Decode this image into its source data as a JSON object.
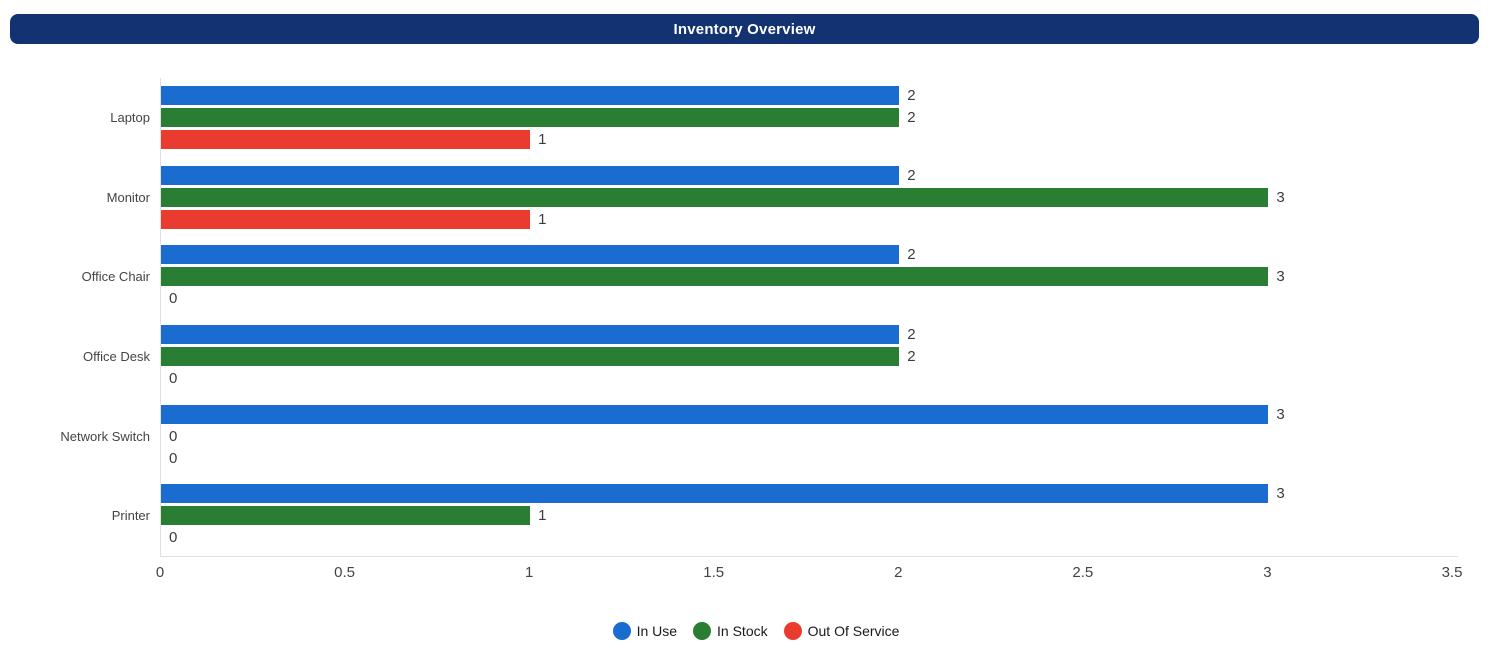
{
  "header": {
    "title": "Inventory Overview",
    "background_color": "#123271",
    "text_color": "#ffffff"
  },
  "chart_data": {
    "type": "bar",
    "orientation": "horizontal",
    "title": "Inventory Overview",
    "categories": [
      "Laptop",
      "Monitor",
      "Office Chair",
      "Office Desk",
      "Network Switch",
      "Printer"
    ],
    "series": [
      {
        "name": "In Use",
        "color": "#1B6CD1",
        "values": [
          2,
          2,
          2,
          2,
          3,
          3
        ]
      },
      {
        "name": "In Stock",
        "color": "#2A7E33",
        "values": [
          2,
          3,
          3,
          2,
          0,
          1
        ]
      },
      {
        "name": "Out Of Service",
        "color": "#E93B30",
        "values": [
          1,
          1,
          0,
          0,
          0,
          0
        ]
      }
    ],
    "xlabel": "",
    "ylabel": "",
    "xlim": [
      0,
      3.5
    ],
    "x_ticks": [
      "0",
      "0.5",
      "1",
      "1.5",
      "2",
      "2.5",
      "3",
      "3.5"
    ],
    "grid": false,
    "value_labels": true,
    "legend_position": "bottom",
    "axis_line_color": "#e0e0e0"
  }
}
